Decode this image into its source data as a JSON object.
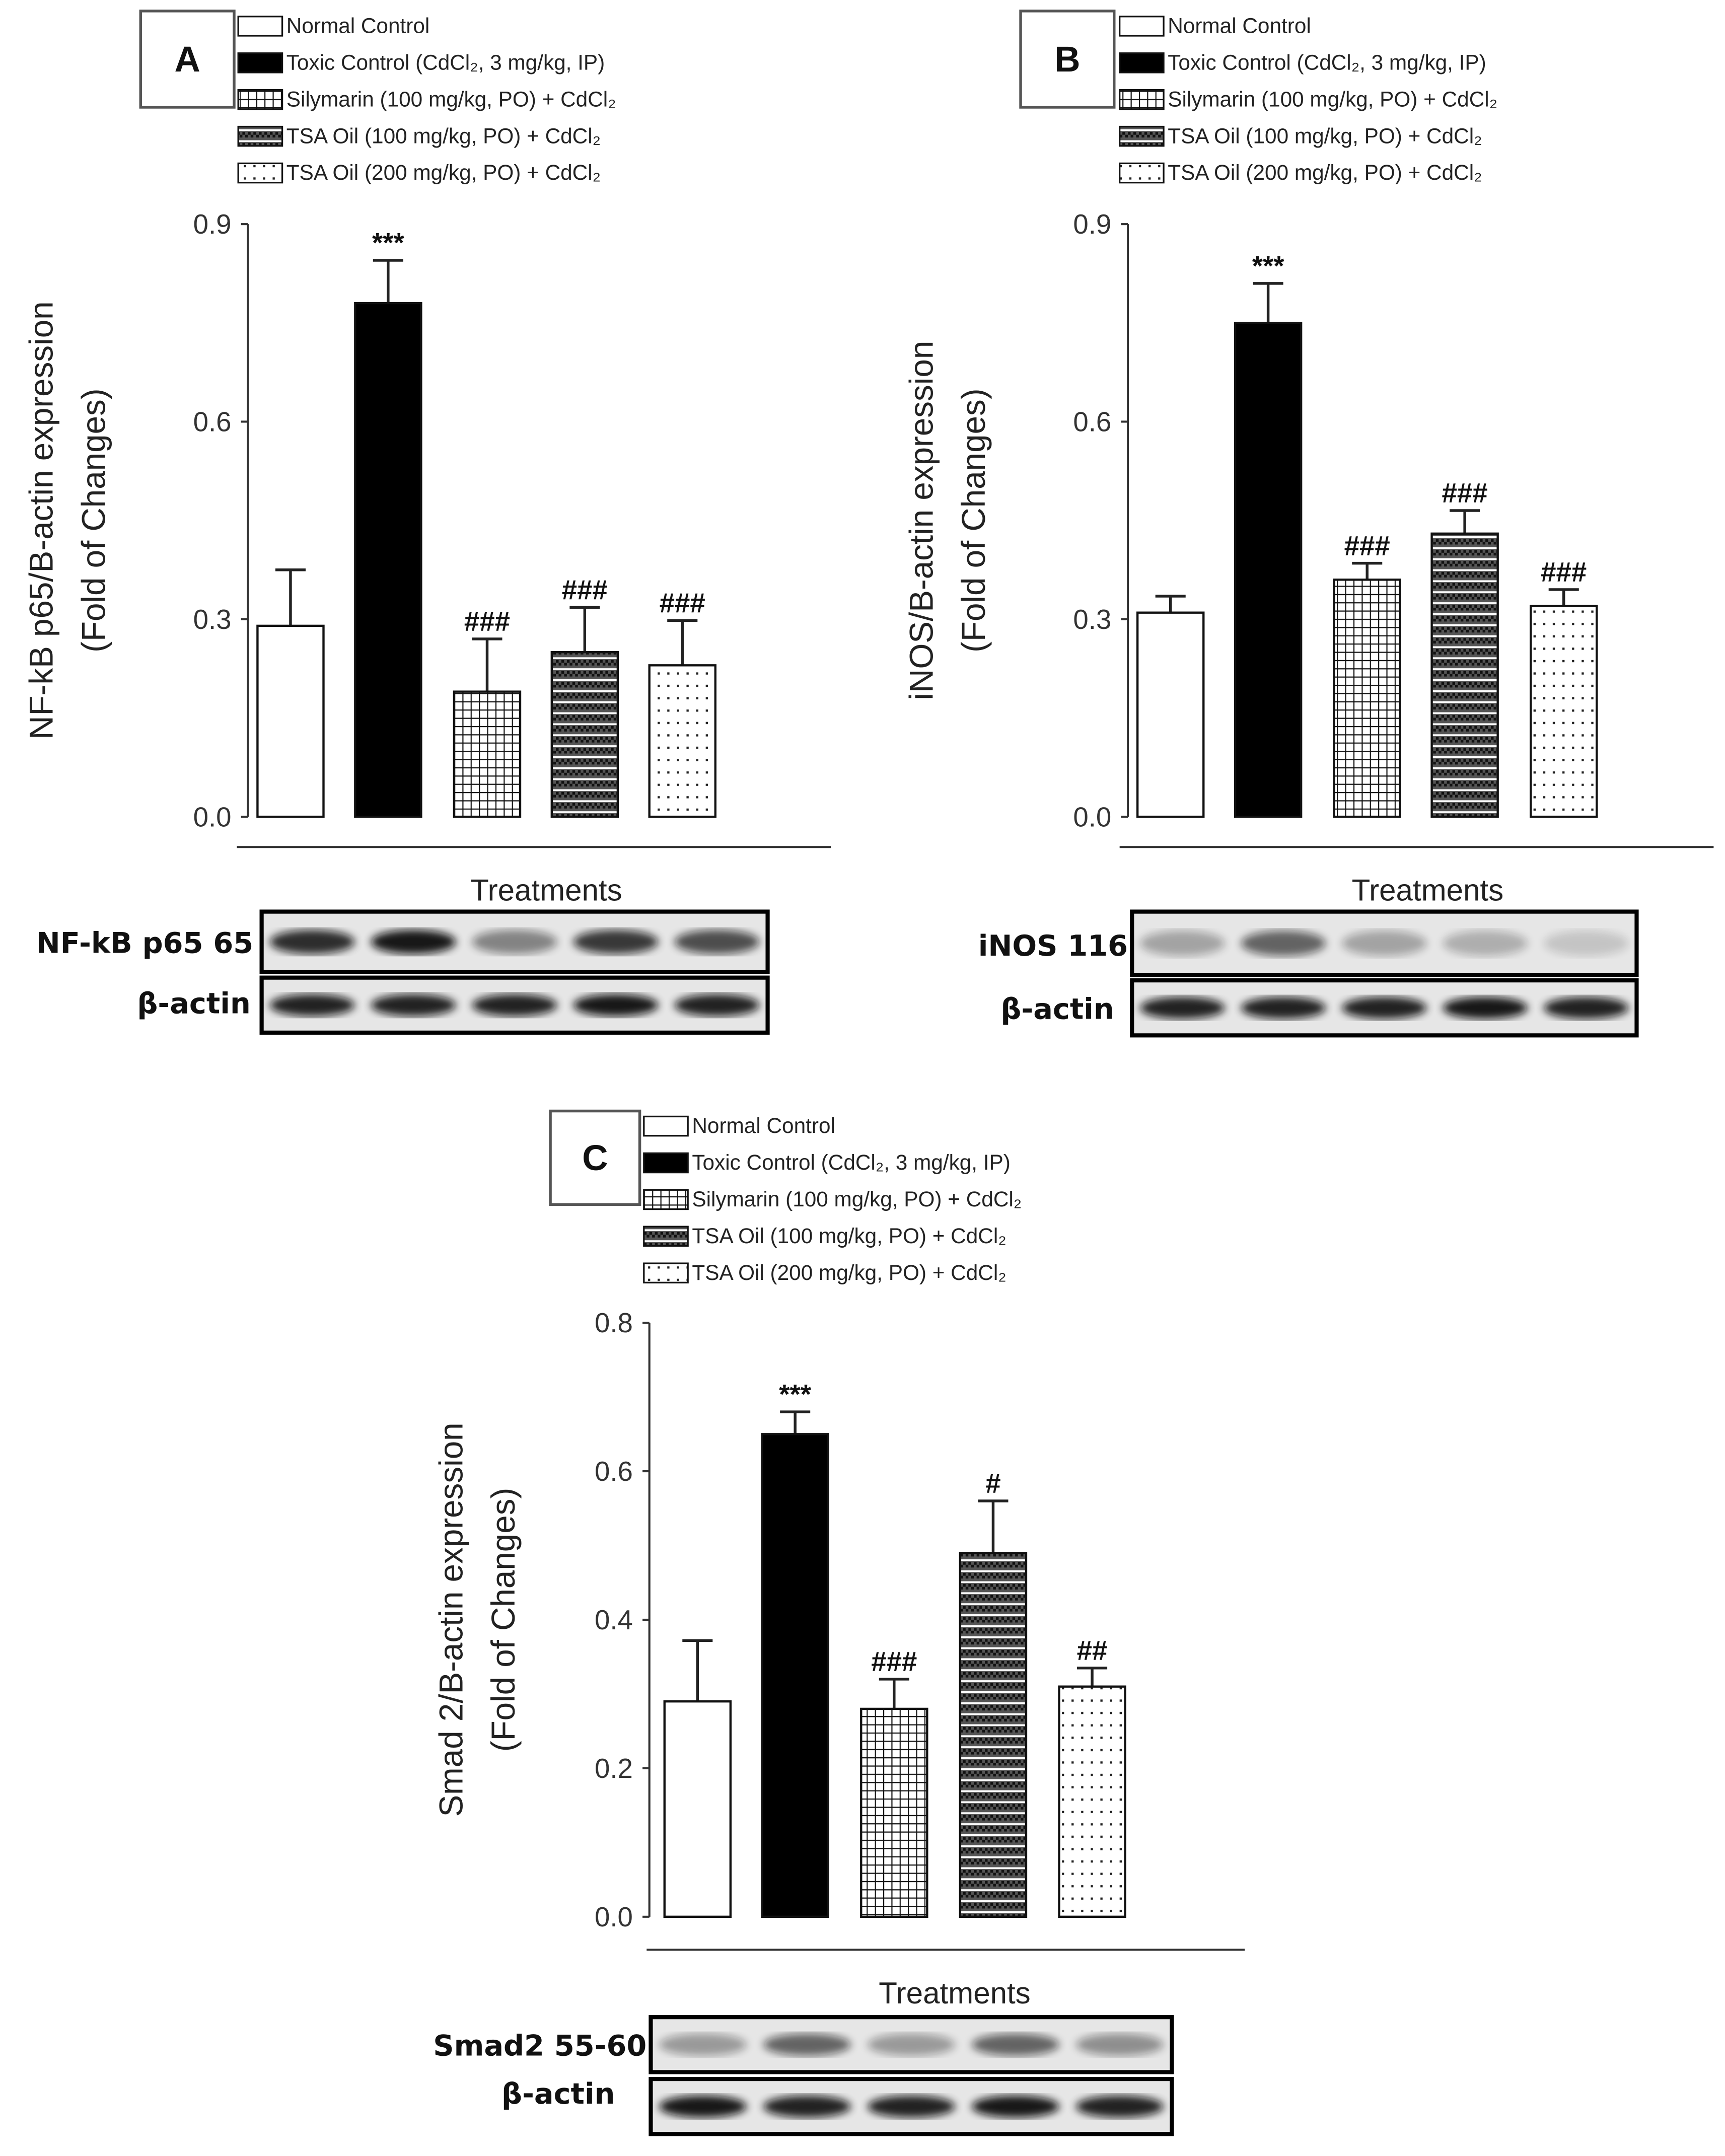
{
  "legend": [
    {
      "label": "Normal Control",
      "fill": "white"
    },
    {
      "label": "Toxic Control (CdCl₂, 3 mg/kg, IP)",
      "fill": "black"
    },
    {
      "label": "Silymarin (100 mg/kg, PO) + CdCl₂",
      "fill": "grid"
    },
    {
      "label": "TSA Oil (100 mg/kg, PO) + CdCl₂",
      "fill": "checker"
    },
    {
      "label": "TSA Oil (200 mg/kg, PO) + CdCl₂",
      "fill": "dots"
    }
  ],
  "chart_data": [
    {
      "panel": "A",
      "type": "bar",
      "ylabel": "NF-kB p65/B-actin expression",
      "ylabel2": "(Fold of Changes)",
      "xlabel": "Treatments",
      "ylim": [
        0,
        0.9
      ],
      "yticks": [
        "0.0",
        "0.3",
        "0.6",
        "0.9"
      ],
      "categories": [
        "Normal Control",
        "Toxic Control (CdCl₂, 3 mg/kg, IP)",
        "Silymarin (100 mg/kg, PO) + CdCl₂",
        "TSA Oil (100 mg/kg, PO) + CdCl₂",
        "TSA Oil (200 mg/kg, PO) + CdCl₂"
      ],
      "values": [
        0.29,
        0.78,
        0.19,
        0.25,
        0.23
      ],
      "errors": [
        0.085,
        0.065,
        0.08,
        0.068,
        0.068
      ],
      "significance": [
        "",
        "***",
        "###",
        "###",
        "###"
      ],
      "blot_labels": [
        "NF-kB p65 65",
        "β-actin"
      ]
    },
    {
      "panel": "B",
      "type": "bar",
      "ylabel": "iNOS/B-actin expression",
      "ylabel2": "(Fold of Changes)",
      "xlabel": "Treatments",
      "ylim": [
        0,
        0.9
      ],
      "yticks": [
        "0.0",
        "0.3",
        "0.6",
        "0.9"
      ],
      "categories": [
        "Normal Control",
        "Toxic Control (CdCl₂, 3 mg/kg, IP)",
        "Silymarin (100 mg/kg, PO) + CdCl₂",
        "TSA Oil (100 mg/kg, PO) + CdCl₂",
        "TSA Oil (200 mg/kg, PO) + CdCl₂"
      ],
      "values": [
        0.31,
        0.75,
        0.36,
        0.43,
        0.32
      ],
      "errors": [
        0.025,
        0.06,
        0.025,
        0.035,
        0.025
      ],
      "significance": [
        "",
        "***",
        "###",
        "###",
        "###"
      ],
      "blot_labels": [
        "iNOS 116",
        "β-actin"
      ]
    },
    {
      "panel": "C",
      "type": "bar",
      "ylabel": "Smad 2/B-actin expression",
      "ylabel2": "(Fold of Changes)",
      "xlabel": "Treatments",
      "ylim": [
        0,
        0.8
      ],
      "yticks": [
        "0.0",
        "0.2",
        "0.4",
        "0.6",
        "0.8"
      ],
      "categories": [
        "Normal Control",
        "Toxic Control (CdCl₂, 3 mg/kg, IP)",
        "Silymarin (100 mg/kg, PO) + CdCl₂",
        "TSA Oil (100 mg/kg, PO) + CdCl₂",
        "TSA Oil (200 mg/kg, PO) + CdCl₂"
      ],
      "values": [
        0.29,
        0.65,
        0.28,
        0.49,
        0.31
      ],
      "errors": [
        0.082,
        0.03,
        0.04,
        0.07,
        0.025
      ],
      "significance": [
        "",
        "***",
        "###",
        "#",
        "##"
      ],
      "blot_labels": [
        "Smad2  55-60",
        "β-actin"
      ]
    }
  ]
}
